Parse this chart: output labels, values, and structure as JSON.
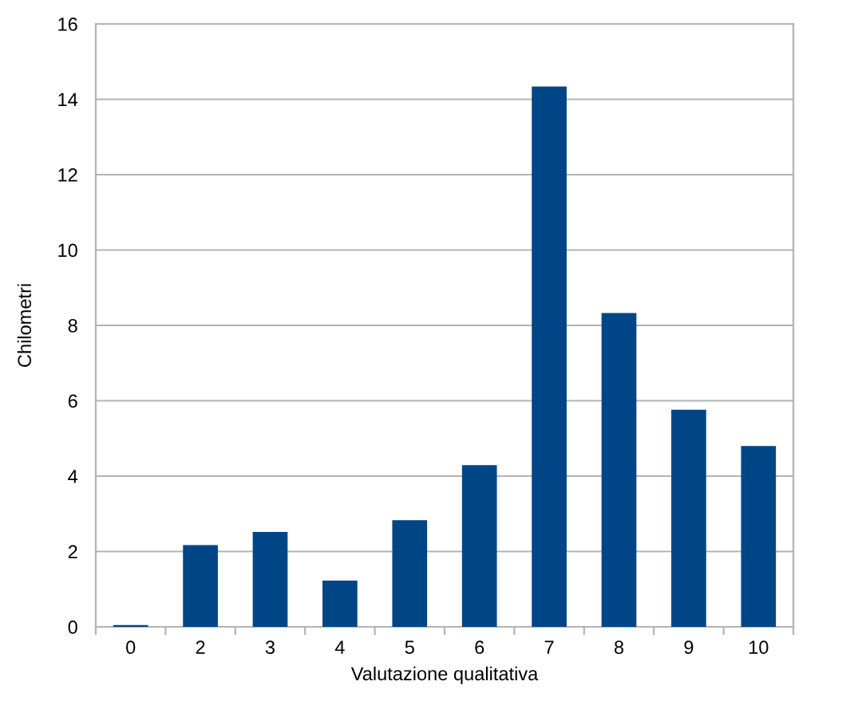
{
  "chart_data": {
    "type": "bar",
    "xlabel": "Valutazione qualitativa",
    "ylabel": "Chilometri",
    "categories": [
      "0",
      "2",
      "3",
      "4",
      "5",
      "6",
      "7",
      "8",
      "9",
      "10"
    ],
    "values": [
      0.05,
      2.17,
      2.52,
      1.23,
      2.83,
      4.29,
      14.34,
      8.33,
      5.76,
      4.8
    ],
    "color": "#004586",
    "ylim": [
      0,
      16
    ],
    "yticks": [
      0,
      2,
      4,
      6,
      8,
      10,
      12,
      14,
      16
    ],
    "grid": "y",
    "legend": false
  }
}
